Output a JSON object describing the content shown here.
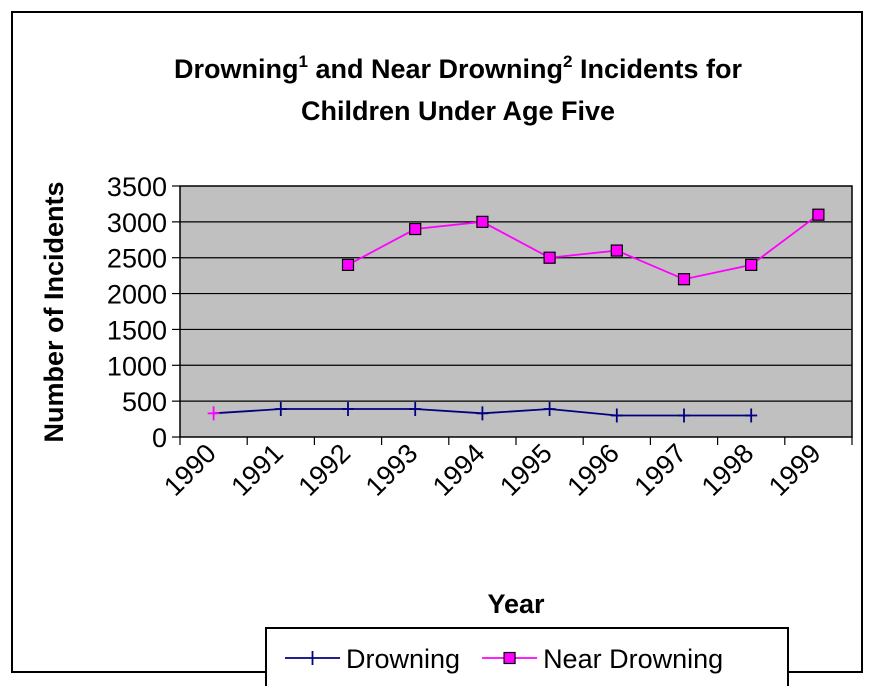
{
  "chart_data": {
    "type": "line",
    "title": {
      "part1": "Drowning",
      "sup1": "1",
      "part2": " and Near Drowning",
      "sup2": "2",
      "part3": " Incidents for",
      "line2": "Children Under Age Five"
    },
    "xlabel": "Year",
    "ylabel": "Number of Incidents",
    "categories": [
      "1990",
      "1991",
      "1992",
      "1993",
      "1994",
      "1995",
      "1996",
      "1997",
      "1998",
      "1999"
    ],
    "y_ticks": [
      "0",
      "500",
      "1000",
      "1500",
      "2000",
      "2500",
      "3000",
      "3500"
    ],
    "ylim": [
      0,
      3500
    ],
    "grid": true,
    "legend_position": "bottom",
    "plot_background": "#c0c0c0",
    "series": [
      {
        "name": "Drowning",
        "color": "#000080",
        "marker": "plus",
        "values": [
          330,
          390,
          390,
          390,
          330,
          390,
          300,
          300,
          300,
          null
        ]
      },
      {
        "name": "Near Drowning",
        "color": "#ff00ff",
        "marker": "square",
        "values": [
          null,
          null,
          2400,
          2900,
          3000,
          2500,
          2600,
          2200,
          2400,
          3100
        ]
      }
    ]
  }
}
